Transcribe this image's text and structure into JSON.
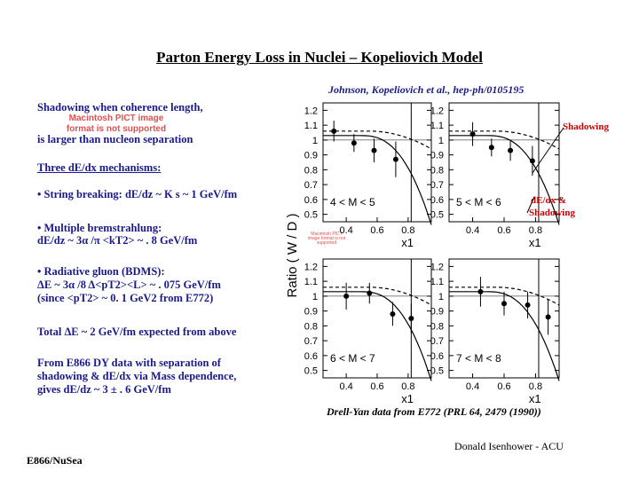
{
  "title": "Parton Energy Loss in Nuclei – Kopeliovich Model",
  "reference": "Johnson, Kopeliovich et al., hep-ph/0105195",
  "left": {
    "shadow_line1": "Shadowing when coherence length,",
    "placeholder_text": "Macintosh PICT image format is not supported",
    "shadow_line2": "is larger than nucleon separation",
    "mechanisms_heading": "Three dE/dx mechanisms:",
    "string_breaking": "• String breaking: dE/dz ~ K s ~ 1 GeV/fm",
    "bremsstrahlung_a": "• Multiple bremstrahlung:",
    "bremsstrahlung_b": "dE/dz ~ 3α /π <kT2> ~ . 8 GeV/fm",
    "small_placeholder": "Macintosh PICT image format is not supported",
    "radiative_a": "• Radiative gluon (BDMS):",
    "radiative_b": "ΔE ~ 3α /8 Δ<pT2><L> ~ . 075 GeV/fm",
    "radiative_c": "(since <pT2> ~ 0. 1 GeV2 from E772)",
    "total": "Total ΔE ~ 2 GeV/fm expected from above",
    "e866_a": "From E866 DY data with separation of",
    "e866_b": "shadowing & dE/dx via Mass dependence,",
    "e866_c": "gives dE/dz ~ 3 ± . 6 GeV/fm"
  },
  "annotations": {
    "shadowing": "Shadowing",
    "dedx_a": "dE/dx &",
    "dedx_b": "Shadowing"
  },
  "caption": "Drell-Yan data from E772 (PRL 64, 2479 (1990))",
  "author": "Donald Isenhower - ACU",
  "experiment": "E866/NuSea",
  "chart_data": {
    "type": "scatter",
    "ylabel": "Ratio ( W / D )",
    "xlabel": "x1",
    "panels": [
      {
        "label": "4 < M < 5",
        "x": [
          0.32,
          0.45,
          0.58,
          0.72
        ],
        "y": [
          1.06,
          0.98,
          0.93,
          0.87
        ],
        "err": [
          0.07,
          0.06,
          0.08,
          0.12
        ]
      },
      {
        "label": "5 < M < 6",
        "x": [
          0.4,
          0.52,
          0.64,
          0.78
        ],
        "y": [
          1.04,
          0.95,
          0.93,
          0.86
        ],
        "err": [
          0.08,
          0.06,
          0.07,
          0.1
        ]
      },
      {
        "label": "6 < M < 7",
        "x": [
          0.4,
          0.55,
          0.7,
          0.82
        ],
        "y": [
          1.0,
          1.02,
          0.88,
          0.85
        ],
        "err": [
          0.09,
          0.07,
          0.08,
          0.1
        ]
      },
      {
        "label": "7 < M < 8",
        "x": [
          0.45,
          0.6,
          0.75,
          0.88
        ],
        "y": [
          1.03,
          0.95,
          0.94,
          0.86
        ],
        "err": [
          0.1,
          0.08,
          0.09,
          0.12
        ]
      }
    ],
    "ylim": [
      0.45,
      1.25
    ],
    "yticks": [
      "1.2",
      "1.1",
      "1",
      "0.9",
      "0.8",
      "0.7",
      "0.6",
      "0.5"
    ],
    "xticks": [
      "0.4",
      "0.6",
      "0.8"
    ],
    "xlim": [
      0.25,
      0.95
    ]
  }
}
